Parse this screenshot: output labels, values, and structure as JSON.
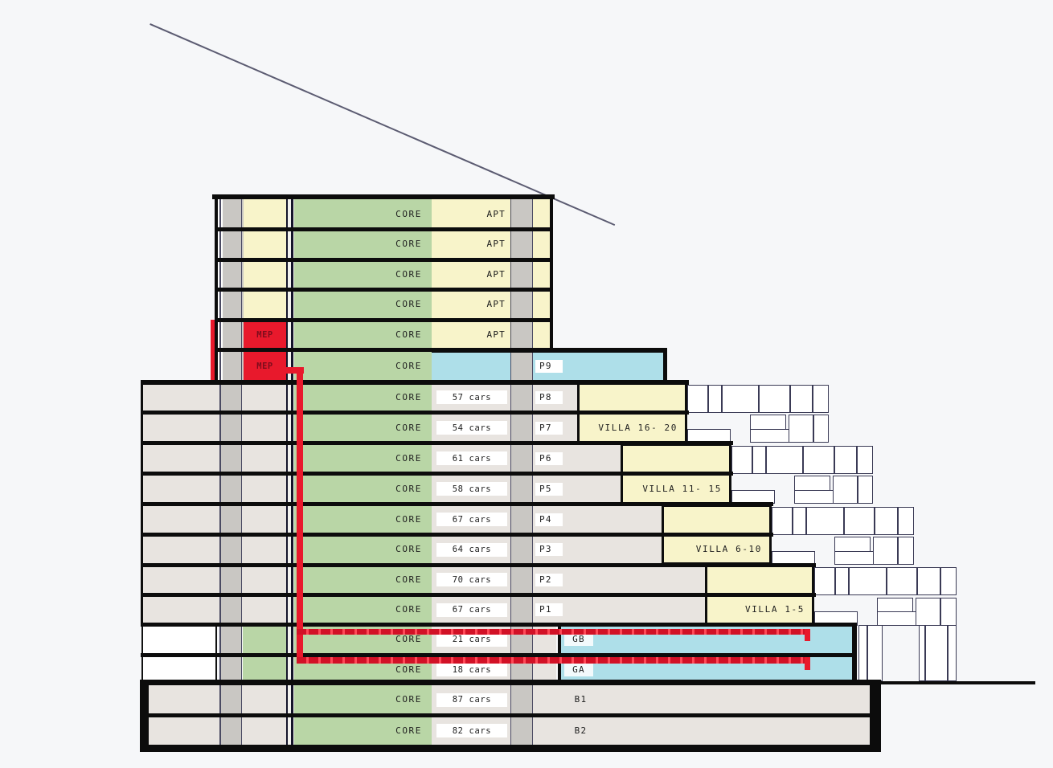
{
  "diagram_title": "building-section",
  "colors": {
    "background": "#f6f7f9",
    "floor_gray": "#e8e4e0",
    "strip_gray": "#c9c7c3",
    "core_green": "#b9d6a6",
    "apt_yellow": "#f8f4ca",
    "parking_blue": "#aedfe9",
    "mep_red": "#e8192c",
    "route_red": "#e8192c",
    "line_black": "#0c0c0c",
    "outline_dark": "#3a3a55"
  },
  "mep_label": "MEP",
  "floors": [
    {
      "core": "CORE",
      "unit": "APT"
    },
    {
      "core": "CORE",
      "unit": "APT"
    },
    {
      "core": "CORE",
      "unit": "APT"
    },
    {
      "core": "CORE",
      "unit": "APT"
    },
    {
      "core": "CORE",
      "unit": "APT"
    },
    {
      "core": "CORE",
      "level": "P9"
    },
    {
      "core": "CORE",
      "cars": "57 cars",
      "level": "P8"
    },
    {
      "core": "CORE",
      "cars": "54 cars",
      "level": "P7"
    },
    {
      "core": "CORE",
      "cars": "61 cars",
      "level": "P6"
    },
    {
      "core": "CORE",
      "cars": "58 cars",
      "level": "P5"
    },
    {
      "core": "CORE",
      "cars": "67 cars",
      "level": "P4"
    },
    {
      "core": "CORE",
      "cars": "64 cars",
      "level": "P3"
    },
    {
      "core": "CORE",
      "cars": "70 cars",
      "level": "P2"
    },
    {
      "core": "CORE",
      "cars": "67 cars",
      "level": "P1"
    },
    {
      "core": "CORE",
      "cars": "21 cars",
      "level": "GB"
    },
    {
      "core": "CORE",
      "cars": "18 cars",
      "level": "GA"
    },
    {
      "core": "CORE",
      "cars": "87 cars",
      "level": "B1"
    },
    {
      "core": "CORE",
      "cars": "82 cars",
      "level": "B2"
    }
  ],
  "villa_blocks": [
    {
      "label": "VILLA 16- 20"
    },
    {
      "label": "VILLA 11- 15"
    },
    {
      "label": "VILLA 6-10"
    },
    {
      "label": "VILLA 1-5"
    }
  ]
}
